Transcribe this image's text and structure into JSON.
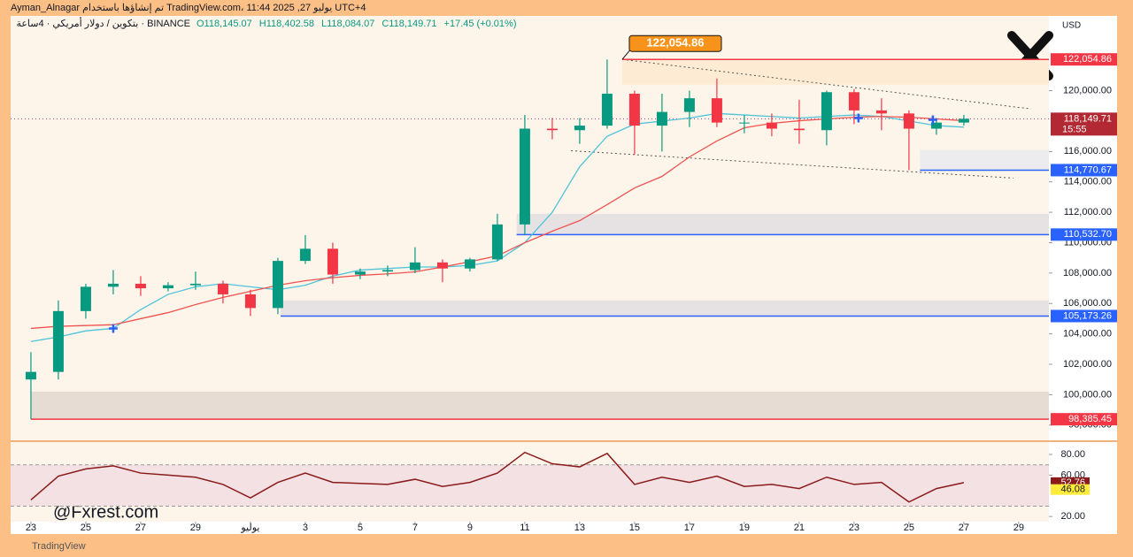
{
  "chart_data": {
    "type": "candlestick",
    "header": {
      "author_line": "Ayman_Alnagar تم إنشاؤها باستخدام TradingView.com، 11:44 2025 ,27 يوليو UTC+4",
      "symbol": "بتكوين / دولار أمريكي · 4ساعة · BINANCE",
      "ohlc": [
        "O118,145.07",
        "H118,402.58",
        "L118,084.07",
        "C118,149.71",
        "+17.45 (+0.01%)"
      ]
    },
    "currency": "USD",
    "watermark": "@Fxrest.com",
    "footer": "TradingView",
    "x": [
      0,
      1,
      2,
      3,
      4,
      5,
      6,
      7,
      8,
      9,
      10,
      11,
      12,
      13,
      14,
      15,
      16,
      17,
      18,
      19,
      20,
      21,
      22,
      23,
      24,
      25,
      26,
      27,
      28,
      29,
      30,
      31,
      32,
      33,
      34
    ],
    "open": [
      101000,
      101500,
      105500,
      107100,
      107300,
      107000,
      107200,
      107300,
      106600,
      105700,
      108800,
      109600,
      107900,
      108100,
      108200,
      108700,
      108300,
      108900,
      111200,
      117500,
      117400,
      117700,
      119800,
      117700,
      118600,
      119500,
      117900,
      117900,
      117500,
      117400,
      119900,
      118700,
      118500,
      117500,
      117900
    ],
    "high": [
      102800,
      106200,
      107300,
      108200,
      107800,
      107400,
      108100,
      107500,
      106900,
      109000,
      110500,
      110000,
      108300,
      108500,
      109700,
      108900,
      109000,
      111900,
      118400,
      118200,
      118200,
      122054.86,
      120000,
      119800,
      120000,
      120800,
      118400,
      118500,
      119400,
      120000,
      120100,
      119500,
      118700,
      118200,
      118402.58
    ],
    "low": [
      98385.45,
      101000,
      105000,
      106600,
      106500,
      106800,
      106900,
      106000,
      105173.26,
      105300,
      108600,
      107300,
      107600,
      107800,
      108000,
      107400,
      108100,
      108800,
      110532.7,
      116800,
      116500,
      117500,
      115800,
      116000,
      117600,
      117600,
      117200,
      117000,
      116500,
      116400,
      117800,
      117400,
      114770.67,
      117100,
      117700
    ],
    "close": [
      101500,
      105500,
      107100,
      107300,
      107000,
      107200,
      107300,
      106600,
      105700,
      108800,
      109600,
      107900,
      108100,
      108200,
      108700,
      108300,
      108900,
      111200,
      117500,
      117400,
      117700,
      119800,
      117700,
      118600,
      119500,
      117900,
      117900,
      117500,
      117400,
      119900,
      118700,
      118500,
      117500,
      117900,
      118149.71
    ],
    "up_color": "#089981",
    "down_color": "#f23645",
    "series": [
      {
        "color": "#4fc3d9",
        "values": [
          103500,
          103800,
          104200,
          104360,
          105600,
          106600,
          107100,
          107300,
          107100,
          106900,
          107200,
          107800,
          108200,
          108300,
          108400,
          108400,
          108500,
          108800,
          110000,
          112000,
          115000,
          117000,
          117800,
          118000,
          118200,
          118500,
          118400,
          118300,
          118200,
          118300,
          118400,
          118300,
          118000,
          117700,
          117600
        ]
      },
      {
        "color": "#ef5350",
        "values": [
          104360,
          104500,
          104550,
          104600,
          105000,
          105400,
          105930,
          106400,
          106800,
          107200,
          107500,
          107700,
          107850,
          107950,
          108080,
          108400,
          108750,
          109130,
          110000,
          110755,
          111450,
          112500,
          113600,
          114360,
          115640,
          116690,
          117560,
          117850,
          118020,
          118140,
          118250,
          118300,
          118250,
          118140,
          118020
        ]
      }
    ],
    "xlim": [
      -0.74,
      37.1
    ],
    "xticks": [
      {
        "value": 0,
        "label": "23"
      },
      {
        "value": 2,
        "label": "25"
      },
      {
        "value": 4,
        "label": "27"
      },
      {
        "value": 6,
        "label": "29"
      },
      {
        "value": 8,
        "label": "يوليو"
      },
      {
        "value": 10,
        "label": "3"
      },
      {
        "value": 12,
        "label": "5"
      },
      {
        "value": 14,
        "label": "7"
      },
      {
        "value": 16,
        "label": "9"
      },
      {
        "value": 18,
        "label": "11"
      },
      {
        "value": 20,
        "label": "13"
      },
      {
        "value": 22,
        "label": "15"
      },
      {
        "value": 24,
        "label": "17"
      },
      {
        "value": 26,
        "label": "19"
      },
      {
        "value": 28,
        "label": "21"
      },
      {
        "value": 30,
        "label": "23"
      },
      {
        "value": 32,
        "label": "25"
      },
      {
        "value": 34,
        "label": "27"
      },
      {
        "value": 36,
        "label": "29"
      }
    ],
    "ylim": [
      97000,
      124800
    ],
    "yticks": [
      {
        "value": 98000,
        "label": "98,000.00"
      },
      {
        "value": 100000,
        "label": "100,000.00"
      },
      {
        "value": 102000,
        "label": "102,000.00"
      },
      {
        "value": 104000,
        "label": "104,000.00"
      },
      {
        "value": 106000,
        "label": "106,000.00"
      },
      {
        "value": 108000,
        "label": "108,000.00"
      },
      {
        "value": 110000,
        "label": "110,000.00"
      },
      {
        "value": 112000,
        "label": "112,000.00"
      },
      {
        "value": 114000,
        "label": "114,000.00"
      },
      {
        "value": 116000,
        "label": "116,000.00"
      },
      {
        "value": 120000,
        "label": "120,000.00"
      }
    ],
    "zones": [
      {
        "x0": 21.55,
        "y0": 120400,
        "y1": 122054.86,
        "color": "#fdebd3"
      },
      {
        "x0": 32.4,
        "y0": 114770.67,
        "y1": 116100,
        "color": "#ececef"
      },
      {
        "x0": 17.7,
        "y0": 110532.7,
        "y1": 111900,
        "color": "#e6e2e4"
      },
      {
        "x0": 9.1,
        "y0": 105173.26,
        "y1": 106200,
        "color": "#e6e2e4"
      },
      {
        "x0": 0,
        "y0": 98385.45,
        "y1": 100200,
        "color": "#e6dcd3"
      }
    ],
    "levels": [
      {
        "value": 122054.86,
        "label": "122,054.86",
        "x0": 21.55,
        "color": "#f23645"
      },
      {
        "value": 114770.67,
        "label": "114,770.67",
        "x0": 32.4,
        "color": "#2962ff"
      },
      {
        "value": 110532.7,
        "label": "110,532.70",
        "x0": 17.7,
        "color": "#2962ff"
      },
      {
        "value": 105173.26,
        "label": "105,173.26",
        "x0": 9.1,
        "color": "#2962ff"
      },
      {
        "value": 98385.45,
        "label": "98,385.45",
        "x0": 0,
        "color": "#f23645"
      }
    ],
    "current": {
      "value": 118149.71,
      "label": "118,149.71",
      "countdown": "15:55",
      "color": "#b22833"
    },
    "trendlines": [
      {
        "x": [
          21.55,
          36.45
        ],
        "y": [
          122054.86,
          118800
        ]
      },
      {
        "x": [
          19.68,
          35.8
        ],
        "y": [
          116050,
          114250
        ]
      }
    ],
    "markers": {
      "x": [
        3.0,
        30.16,
        32.87
      ],
      "y": [
        104360,
        118198,
        118081
      ],
      "color": "#2962ff"
    },
    "annotation": {
      "label": "122,054.86",
      "x": 21.55,
      "y": 122054.86
    },
    "rsi": {
      "values": [
        36,
        59,
        66,
        69,
        62,
        60,
        58,
        51,
        38,
        53,
        62,
        53,
        52,
        51,
        56,
        49,
        53,
        62,
        82,
        71,
        68,
        81,
        51,
        58,
        53,
        59,
        49,
        51,
        47,
        58,
        51,
        53,
        34,
        47,
        52.76
      ],
      "color": "#8b1a1a",
      "signal_value": 46.08,
      "band": [
        30,
        70
      ],
      "ylim": [
        15,
        92
      ],
      "yticks": [
        {
          "value": 80,
          "label": "80.00"
        },
        {
          "value": 60,
          "label": "60.00"
        },
        {
          "value": 20,
          "label": "20.00"
        }
      ]
    }
  }
}
